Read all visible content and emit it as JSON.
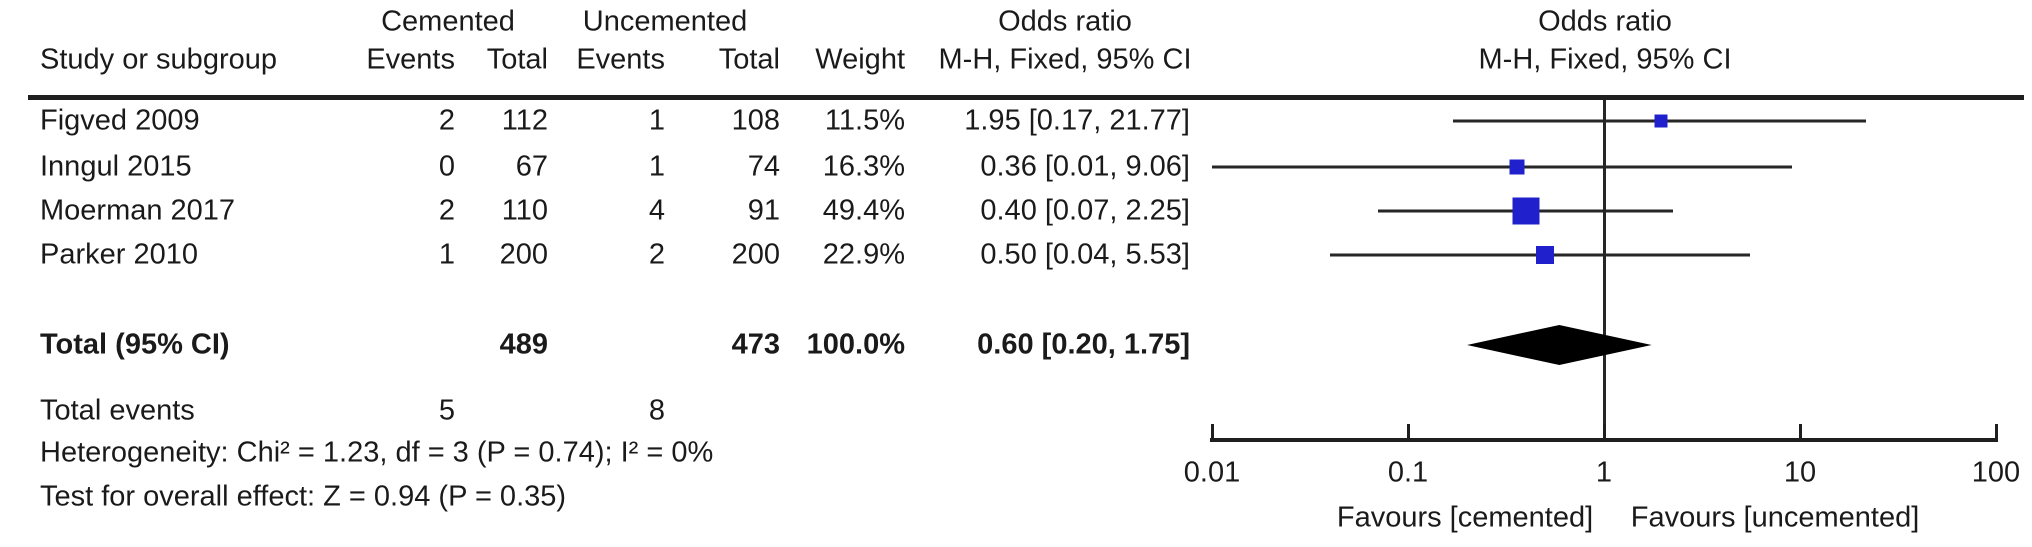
{
  "colors": {
    "marker_blue": "#2020CC",
    "line_black": "#262626",
    "diamond_black": "#000000"
  },
  "chart_data": {
    "type": "forest",
    "effect_measure": "Odds ratio",
    "method": "M-H, Fixed, 95% CI",
    "headers": {
      "study": "Study or subgroup",
      "group1": "Cemented",
      "group2": "Uncemented",
      "events": "Events",
      "total": "Total",
      "weight": "Weight",
      "or_col_title": "Odds ratio",
      "or_col_sub": "M-H, Fixed, 95% CI",
      "plot_title": "Odds ratio",
      "plot_sub": "M-H, Fixed, 95% CI"
    },
    "studies": [
      {
        "name": "Figved 2009",
        "e1": "2",
        "t1": "112",
        "e2": "1",
        "t2": "108",
        "weight": "11.5%",
        "or_label": "1.95 [0.17, 21.77]",
        "or": 1.95,
        "lo": 0.17,
        "hi": 21.77,
        "weight_pct": 11.5
      },
      {
        "name": "Inngul 2015",
        "e1": "0",
        "t1": "67",
        "e2": "1",
        "t2": "74",
        "weight": "16.3%",
        "or_label": "0.36 [0.01, 9.06]",
        "or": 0.36,
        "lo": 0.01,
        "hi": 9.06,
        "weight_pct": 16.3
      },
      {
        "name": "Moerman 2017",
        "e1": "2",
        "t1": "110",
        "e2": "4",
        "t2": "91",
        "weight": "49.4%",
        "or_label": "0.40 [0.07, 2.25]",
        "or": 0.4,
        "lo": 0.07,
        "hi": 2.25,
        "weight_pct": 49.4
      },
      {
        "name": "Parker 2010",
        "e1": "1",
        "t1": "200",
        "e2": "2",
        "t2": "200",
        "weight": "22.9%",
        "or_label": "0.50 [0.04, 5.53]",
        "or": 0.5,
        "lo": 0.04,
        "hi": 5.53,
        "weight_pct": 22.9
      }
    ],
    "total": {
      "label": "Total (95% CI)",
      "t1": "489",
      "t2": "473",
      "weight": "100.0%",
      "or_label": "0.60 [0.20, 1.75]",
      "or": 0.6,
      "lo": 0.2,
      "hi": 1.75
    },
    "total_events": {
      "label": "Total events",
      "e1": "5",
      "e2": "8"
    },
    "heterogeneity": "Heterogeneity: Chi² = 1.23, df = 3 (P = 0.74); I² = 0%",
    "overall_effect": "Test for overall effect: Z = 0.94 (P = 0.35)",
    "axis": {
      "scale": "log10",
      "min": 0.01,
      "max": 100,
      "ticks": [
        0.01,
        0.1,
        1,
        10,
        100
      ],
      "tick_labels": [
        "0.01",
        "0.1",
        "1",
        "10",
        "100"
      ],
      "null_value": 1
    },
    "favours_left": "Favours [cemented]",
    "favours_right": "Favours [uncemented]"
  }
}
